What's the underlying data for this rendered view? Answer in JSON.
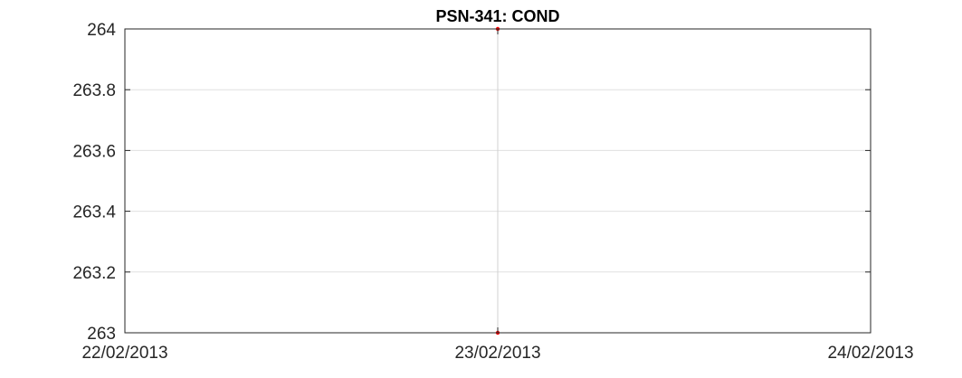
{
  "chart_data": {
    "type": "line",
    "title": "PSN-341: COND",
    "xlabel": "",
    "ylabel": "",
    "x_ticks": [
      "22/02/2013",
      "23/02/2013",
      "24/02/2013"
    ],
    "xlim": [
      "22/02/2013",
      "24/02/2013"
    ],
    "y_ticks": [
      "263",
      "263.2",
      "263.4",
      "263.6",
      "263.8",
      "264"
    ],
    "ylim": [
      263,
      264
    ],
    "grid": true,
    "series": [
      {
        "x": [
          "23/02/2013",
          "23/02/2013"
        ],
        "values": [
          263,
          264
        ],
        "color": "#ff0000",
        "marker": "dot"
      }
    ],
    "colors": {
      "axes": "#262626",
      "grid": "#e0e0e0",
      "marker": "#ff0000",
      "line": "#d0d0d0"
    }
  }
}
